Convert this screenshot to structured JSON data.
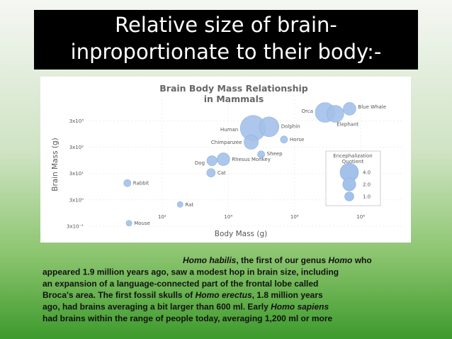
{
  "slide_title_lines": [
    "Relative size of brain-",
    "inproportionate to their body:-"
  ],
  "chart_data": {
    "type": "bubble",
    "title_lines": [
      "Brain Body Mass Relationship",
      "in Mammals"
    ],
    "x_label": "Body Mass (g)",
    "y_label": "Brain Mass (g)",
    "log_x": true,
    "log_y": true,
    "grid": true,
    "color": "#a3c1e9",
    "xlim": [
      0.6,
      2000000000
    ],
    "ylim": [
      0.15,
      20000
    ],
    "xticks": [
      {
        "value": 100,
        "label": "10²"
      },
      {
        "value": 10000,
        "label": "10⁴"
      },
      {
        "value": 1000000,
        "label": "10⁶"
      },
      {
        "value": 100000000,
        "label": "10⁸"
      }
    ],
    "yticks": [
      {
        "value": 0.3,
        "label": "3x10⁻¹"
      },
      {
        "value": 3,
        "label": "3x10⁰"
      },
      {
        "value": 30,
        "label": "3x10¹"
      },
      {
        "value": 300,
        "label": "3x10²"
      },
      {
        "value": 3000,
        "label": "3x10³"
      }
    ],
    "points": [
      {
        "label": "Blue Whale",
        "x": 46000000,
        "y": 8700,
        "size": 1.9
      },
      {
        "label": "Orca",
        "x": 8400000,
        "y": 6300,
        "size": 4.6
      },
      {
        "label": "Elephant",
        "x": 17000000,
        "y": 5600,
        "size": 3.4
      },
      {
        "label": "Human",
        "x": 56000,
        "y": 1600,
        "size": 7.7
      },
      {
        "label": "Dolphin",
        "x": 170000,
        "y": 1800,
        "size": 4.6
      },
      {
        "label": "Chimpanzee",
        "x": 49000,
        "y": 470,
        "size": 2.4
      },
      {
        "label": "Horse",
        "x": 480000,
        "y": 590,
        "size": 0.6
      },
      {
        "label": "Sheep",
        "x": 98000,
        "y": 160,
        "size": 0.6
      },
      {
        "label": "Rhesus Monkey",
        "x": 7100,
        "y": 105,
        "size": 1.9
      },
      {
        "label": "Dog",
        "x": 3200,
        "y": 92,
        "size": 1.2
      },
      {
        "label": "Cat",
        "x": 3000,
        "y": 32,
        "size": 0.85
      },
      {
        "label": "Rabbit",
        "x": 8.9,
        "y": 13,
        "size": 0.6
      },
      {
        "label": "Rat",
        "x": 350,
        "y": 2,
        "size": 0.4
      },
      {
        "label": "Mouse",
        "x": 10,
        "y": 0.39,
        "size": 0.4
      }
    ],
    "legend_title_lines": [
      "Encephalization",
      "Quotient"
    ],
    "size_legend": [
      {
        "value": 4,
        "label": "4.0"
      },
      {
        "value": 2,
        "label": "2.0"
      },
      {
        "value": 1,
        "label": "1.0"
      }
    ]
  },
  "caption": {
    "lines": [
      [
        {
          "text": "Homo habilis",
          "italic": true
        },
        {
          "text": ", the first of our genus ",
          "italic": false
        },
        {
          "text": "Homo",
          "italic": true
        },
        {
          "text": " who",
          "italic": false
        }
      ],
      [
        {
          "text": "appeared 1.9 million years ago, saw a modest hop in brain size, including",
          "italic": false
        }
      ],
      [
        {
          "text": "an expansion of a language-connected part of the frontal lobe called",
          "italic": false
        }
      ],
      [
        {
          "text": "Broca's area. The first fossil skulls of ",
          "italic": false
        },
        {
          "text": "Homo erectus",
          "italic": true
        },
        {
          "text": ", 1.8 million years",
          "italic": false
        }
      ],
      [
        {
          "text": "ago, had brains averaging a bit larger than 600 ml. Early ",
          "italic": false
        },
        {
          "text": "Homo sapiens",
          "italic": true
        }
      ],
      [
        {
          "text": "had brains within the range of people today, averaging 1,200 ml or more",
          "italic": false
        }
      ]
    ]
  }
}
